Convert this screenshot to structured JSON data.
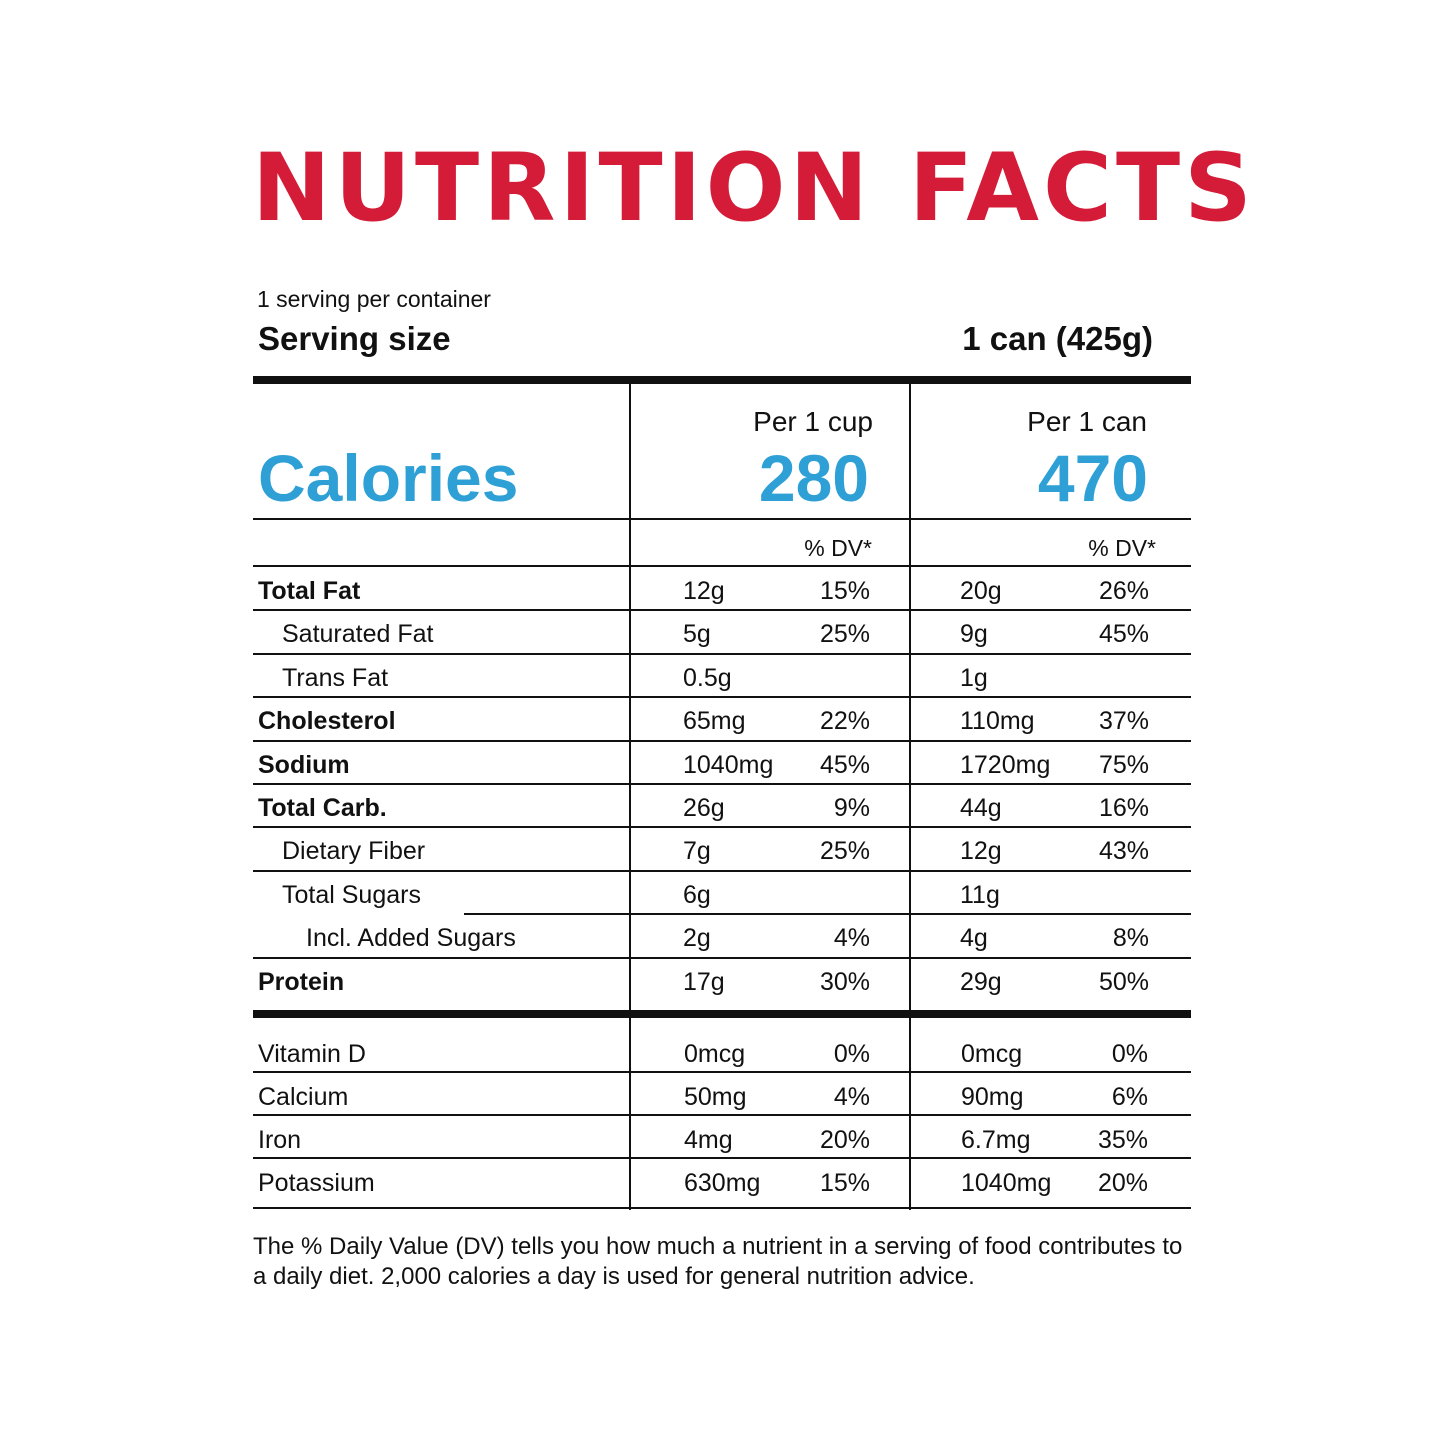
{
  "title": "NUTRITION FACTS",
  "servings_per_container": "1 serving per container",
  "serving_size_label": "Serving size",
  "serving_size_value": "1 can (425g)",
  "calories_label": "Calories",
  "columns": [
    {
      "header": "Per 1 cup",
      "calories": "280",
      "dv_header": "% DV*"
    },
    {
      "header": "Per 1 can",
      "calories": "470",
      "dv_header": "% DV*"
    }
  ],
  "nutrients": [
    {
      "name": "Total Fat",
      "bold": true,
      "indent": 0,
      "cup_amount": "12g",
      "cup_dv": "15%",
      "can_amount": "20g",
      "can_dv": "26%"
    },
    {
      "name": "Saturated Fat",
      "bold": false,
      "indent": 1,
      "cup_amount": "5g",
      "cup_dv": "25%",
      "can_amount": "9g",
      "can_dv": "45%"
    },
    {
      "name": "Trans Fat",
      "bold": false,
      "indent": 1,
      "cup_amount": "0.5g",
      "cup_dv": "",
      "can_amount": "1g",
      "can_dv": ""
    },
    {
      "name": "Cholesterol",
      "bold": true,
      "indent": 0,
      "cup_amount": "65mg",
      "cup_dv": "22%",
      "can_amount": "110mg",
      "can_dv": "37%"
    },
    {
      "name": "Sodium",
      "bold": true,
      "indent": 0,
      "cup_amount": "1040mg",
      "cup_dv": "45%",
      "can_amount": "1720mg",
      "can_dv": "75%"
    },
    {
      "name": "Total Carb.",
      "bold": true,
      "indent": 0,
      "cup_amount": "26g",
      "cup_dv": "9%",
      "can_amount": "44g",
      "can_dv": "16%"
    },
    {
      "name": "Dietary Fiber",
      "bold": false,
      "indent": 1,
      "cup_amount": "7g",
      "cup_dv": "25%",
      "can_amount": "12g",
      "can_dv": "43%"
    },
    {
      "name": "Total Sugars",
      "bold": false,
      "indent": 1,
      "cup_amount": "6g",
      "cup_dv": "",
      "can_amount": "11g",
      "can_dv": ""
    },
    {
      "name": "Incl. Added Sugars",
      "bold": false,
      "indent": 2,
      "cup_amount": "2g",
      "cup_dv": "4%",
      "can_amount": "4g",
      "can_dv": "8%"
    },
    {
      "name": "Protein",
      "bold": true,
      "indent": 0,
      "cup_amount": "17g",
      "cup_dv": "30%",
      "can_amount": "29g",
      "can_dv": "50%"
    }
  ],
  "vitamins": [
    {
      "name": "Vitamin D",
      "cup_amount": "0mcg",
      "cup_dv": "0%",
      "can_amount": "0mcg",
      "can_dv": "0%"
    },
    {
      "name": "Calcium",
      "cup_amount": "50mg",
      "cup_dv": "4%",
      "can_amount": "90mg",
      "can_dv": "6%"
    },
    {
      "name": "Iron",
      "cup_amount": "4mg",
      "cup_dv": "20%",
      "can_amount": "6.7mg",
      "can_dv": "35%"
    },
    {
      "name": "Potassium",
      "cup_amount": "630mg",
      "cup_dv": "15%",
      "can_amount": "1040mg",
      "can_dv": "20%"
    }
  ],
  "footnote": "The % Daily Value (DV) tells you how much a nutrient in a serving of food contributes to a daily diet. 2,000 calories a day is used for general nutrition advice.",
  "colors": {
    "title": "#d41c38",
    "calories": "#2ea0d6",
    "text": "#111111"
  }
}
